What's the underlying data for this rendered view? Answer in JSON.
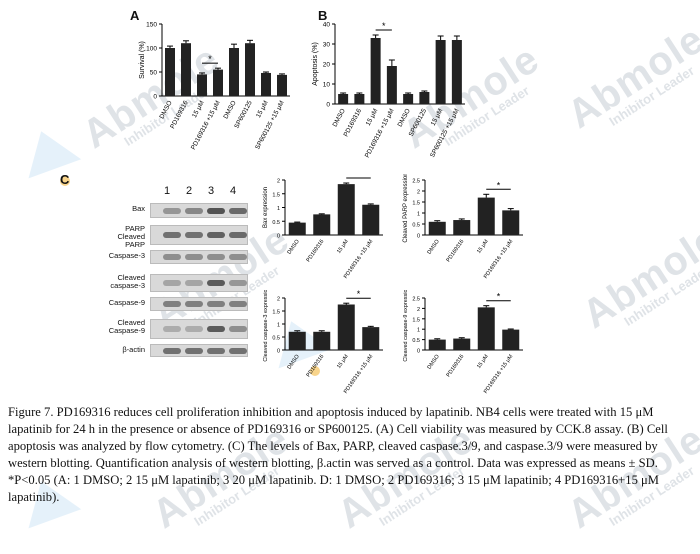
{
  "watermark": {
    "brand": "Abmole",
    "tagline": "Inhibitor Leader"
  },
  "panels": {
    "a": "A",
    "b": "B",
    "c": "C"
  },
  "blot": {
    "lanes": [
      "1",
      "2",
      "3",
      "4"
    ],
    "rows": [
      "Bax",
      "PARP\nCleaved PARP",
      "Caspase-3",
      "Cleaved\ncaspase-3",
      "Caspase-9",
      "Cleaved\nCaspase-9",
      "β-actin"
    ],
    "intensities": [
      [
        0.45,
        0.55,
        0.9,
        0.75
      ],
      [
        0.7,
        0.7,
        0.8,
        0.75
      ],
      [
        0.5,
        0.5,
        0.5,
        0.5
      ],
      [
        0.35,
        0.35,
        0.85,
        0.45
      ],
      [
        0.6,
        0.6,
        0.6,
        0.6
      ],
      [
        0.3,
        0.3,
        0.85,
        0.5
      ],
      [
        0.7,
        0.7,
        0.7,
        0.7
      ]
    ]
  },
  "chart_data": [
    {
      "type": "bar",
      "panel": "A",
      "ylabel": "Survival (%)",
      "ylim": [
        0,
        150
      ],
      "yticks": [
        0,
        50,
        100,
        150
      ],
      "categories": [
        "DMSO",
        "PD169316",
        "15 μM",
        "PD169316 +15 μM",
        "DMSO",
        "SP600125",
        "15 μM",
        "SP600125 +15 μM"
      ],
      "values": [
        100,
        110,
        45,
        55,
        100,
        110,
        48,
        44
      ],
      "errors": [
        4,
        5,
        3,
        3,
        8,
        6,
        2,
        2
      ],
      "significance": [
        {
          "from": 2,
          "to": 3,
          "label": "*"
        }
      ]
    },
    {
      "type": "bar",
      "panel": "B",
      "ylabel": "Apoptosis (%)",
      "ylim": [
        0,
        40
      ],
      "yticks": [
        0,
        10,
        20,
        30,
        40
      ],
      "categories": [
        "DMSO",
        "PD169316",
        "15 μM",
        "PD169316 +15 μM",
        "DMSO",
        "SP600125",
        "15 μM",
        "SP600125 +15 μM"
      ],
      "values": [
        5,
        5,
        33,
        19,
        5,
        6,
        32,
        32
      ],
      "errors": [
        0.5,
        0.5,
        1.5,
        3,
        0.5,
        0.5,
        2,
        2
      ],
      "significance": [
        {
          "from": 2,
          "to": 3,
          "label": "*"
        }
      ]
    },
    {
      "type": "bar",
      "panel": "C1",
      "ylabel": "Bax expression",
      "ylim": [
        0,
        2.0
      ],
      "yticks": [
        0,
        0.5,
        1.0,
        1.5,
        2.0
      ],
      "categories": [
        "DMSO",
        "PD169316",
        "15 μM",
        "PD169316 +15 μM"
      ],
      "values": [
        0.45,
        0.75,
        1.85,
        1.1
      ],
      "errors": [
        0.02,
        0.02,
        0.04,
        0.03
      ],
      "significance": [
        {
          "from": 2,
          "to": 3,
          "label": "*"
        }
      ]
    },
    {
      "type": "bar",
      "panel": "C2",
      "ylabel": "Cleaved PARP expression",
      "ylim": [
        0,
        2.5
      ],
      "yticks": [
        0,
        0.5,
        1.0,
        1.5,
        2.0,
        2.5
      ],
      "categories": [
        "DMSO",
        "PD169316",
        "15 μM",
        "PD169316 +15 μM"
      ],
      "values": [
        0.6,
        0.68,
        1.7,
        1.12
      ],
      "errors": [
        0.05,
        0.05,
        0.15,
        0.08
      ],
      "significance": [
        {
          "from": 2,
          "to": 3,
          "label": "*"
        }
      ]
    },
    {
      "type": "bar",
      "panel": "C3",
      "ylabel": "Cleaved caspase-3 expression",
      "ylim": [
        0,
        2.0
      ],
      "yticks": [
        0,
        0.5,
        1.0,
        1.5,
        2.0
      ],
      "categories": [
        "DMSO",
        "PD169316",
        "15 μM",
        "PD169316 +15 μM"
      ],
      "values": [
        0.7,
        0.7,
        1.75,
        0.88
      ],
      "errors": [
        0.04,
        0.04,
        0.05,
        0.03
      ],
      "significance": [
        {
          "from": 2,
          "to": 3,
          "label": "*"
        }
      ]
    },
    {
      "type": "bar",
      "panel": "C4",
      "ylabel": "Cleaved caspase-9 expression",
      "ylim": [
        0,
        2.5
      ],
      "yticks": [
        0,
        0.5,
        1.0,
        1.5,
        2.0,
        2.5
      ],
      "categories": [
        "DMSO",
        "PD169316",
        "15 μM",
        "PD169316 +15 μM"
      ],
      "values": [
        0.5,
        0.55,
        2.05,
        0.98
      ],
      "errors": [
        0.04,
        0.04,
        0.08,
        0.03
      ],
      "significance": [
        {
          "from": 2,
          "to": 3,
          "label": "*"
        }
      ]
    }
  ],
  "caption": "Figure 7. PD169316 reduces cell proliferation inhibition and apoptosis induced by lapatinib. NB4 cells were treated with 15 μM lapatinib for 24 h in the presence or absence of PD169316 or SP600125. (A) Cell viability was measured by CCK.8 assay. (B) Cell apoptosis was analyzed by flow cytometry. (C) The levels of Bax, PARP, cleaved caspase.3/9, and caspase.3/9 were measured by western blotting. Quantification analysis of western blotting, β.actin was served as a control. Data was expressed as means ± SD. *P<0.05 (A: 1 DMSO; 2 15 μM lapatinib; 3 20 μM lapatinib. D: 1 DMSO; 2 PD169316; 3 15 μM lapatinib; 4 PD169316+15 μM lapatinib)."
}
